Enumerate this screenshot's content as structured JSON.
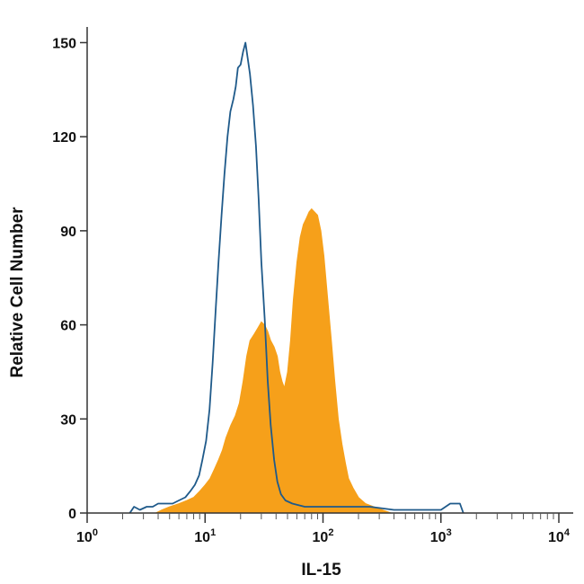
{
  "chart_data": {
    "type": "area",
    "xlabel": "IL-15",
    "ylabel": "Relative Cell Number",
    "x_scale": "log",
    "xlim": [
      1,
      10000
    ],
    "ylim": [
      0,
      155
    ],
    "y_ticks": [
      0,
      30,
      60,
      90,
      120,
      150
    ],
    "x_ticks": [
      {
        "value": 1,
        "base": "10",
        "exp": "0"
      },
      {
        "value": 10,
        "base": "10",
        "exp": "1"
      },
      {
        "value": 100,
        "base": "10",
        "exp": "2"
      },
      {
        "value": 1000,
        "base": "10",
        "exp": "3"
      },
      {
        "value": 10000,
        "base": "10",
        "exp": "4"
      }
    ],
    "grid": false,
    "legend": "none",
    "series": [
      {
        "style": "outline",
        "color": "#1f5a8a",
        "points": [
          [
            2.3,
            0
          ],
          [
            2.5,
            2
          ],
          [
            2.8,
            1
          ],
          [
            3.2,
            2
          ],
          [
            3.6,
            2
          ],
          [
            4.0,
            3
          ],
          [
            4.6,
            3
          ],
          [
            5.3,
            3
          ],
          [
            6.0,
            4
          ],
          [
            6.8,
            5
          ],
          [
            7.5,
            7
          ],
          [
            8.2,
            9
          ],
          [
            8.9,
            12
          ],
          [
            9.5,
            17
          ],
          [
            10.2,
            23
          ],
          [
            10.9,
            33
          ],
          [
            11.6,
            48
          ],
          [
            12.3,
            65
          ],
          [
            13.0,
            80
          ],
          [
            13.8,
            95
          ],
          [
            14.6,
            108
          ],
          [
            15.5,
            120
          ],
          [
            16.4,
            128
          ],
          [
            17.4,
            132
          ],
          [
            18.2,
            136
          ],
          [
            19.0,
            142
          ],
          [
            20.0,
            143
          ],
          [
            21.0,
            147
          ],
          [
            22.0,
            150
          ],
          [
            23.0,
            145
          ],
          [
            24.0,
            140
          ],
          [
            25.5,
            130
          ],
          [
            27.0,
            117
          ],
          [
            28.5,
            100
          ],
          [
            30.0,
            80
          ],
          [
            32.0,
            62
          ],
          [
            34.0,
            42
          ],
          [
            36.0,
            28
          ],
          [
            38.5,
            17
          ],
          [
            41.0,
            10
          ],
          [
            44.0,
            6
          ],
          [
            48.0,
            4
          ],
          [
            55.0,
            3
          ],
          [
            70.0,
            2
          ],
          [
            100,
            2
          ],
          [
            150,
            2
          ],
          [
            250,
            2
          ],
          [
            400,
            1
          ],
          [
            700,
            1
          ],
          [
            1000,
            1
          ],
          [
            1200,
            3
          ],
          [
            1450,
            3
          ],
          [
            1550,
            0
          ]
        ]
      },
      {
        "style": "filled",
        "color": "#f6a01a",
        "points": [
          [
            3.8,
            0
          ],
          [
            4.3,
            1
          ],
          [
            5.0,
            2
          ],
          [
            6.0,
            3
          ],
          [
            7.0,
            4
          ],
          [
            8.0,
            5
          ],
          [
            9.0,
            7
          ],
          [
            10.0,
            9
          ],
          [
            11.0,
            11
          ],
          [
            12.0,
            14
          ],
          [
            13.0,
            17
          ],
          [
            14.0,
            20
          ],
          [
            15.0,
            24
          ],
          [
            16.5,
            28
          ],
          [
            18.0,
            31
          ],
          [
            19.5,
            35
          ],
          [
            21.0,
            42
          ],
          [
            22.5,
            50
          ],
          [
            24.0,
            55
          ],
          [
            26.0,
            57
          ],
          [
            28.0,
            59
          ],
          [
            30.0,
            61
          ],
          [
            32.0,
            60
          ],
          [
            34.0,
            58
          ],
          [
            36.0,
            55
          ],
          [
            38.5,
            53
          ],
          [
            41.0,
            50
          ],
          [
            43.0,
            45
          ],
          [
            45.0,
            42
          ],
          [
            47.0,
            40
          ],
          [
            50.0,
            45
          ],
          [
            53.0,
            55
          ],
          [
            56.0,
            68
          ],
          [
            60.0,
            80
          ],
          [
            64.0,
            88
          ],
          [
            68.0,
            92
          ],
          [
            72.0,
            94
          ],
          [
            76.0,
            96
          ],
          [
            80.0,
            97
          ],
          [
            85.0,
            96
          ],
          [
            90.0,
            95
          ],
          [
            96.0,
            90
          ],
          [
            102,
            82
          ],
          [
            110,
            68
          ],
          [
            118,
            55
          ],
          [
            126,
            42
          ],
          [
            135,
            30
          ],
          [
            145,
            22
          ],
          [
            155,
            16
          ],
          [
            165,
            11
          ],
          [
            180,
            8
          ],
          [
            200,
            5
          ],
          [
            230,
            3
          ],
          [
            270,
            2
          ],
          [
            320,
            1
          ],
          [
            380,
            0
          ]
        ]
      }
    ]
  }
}
